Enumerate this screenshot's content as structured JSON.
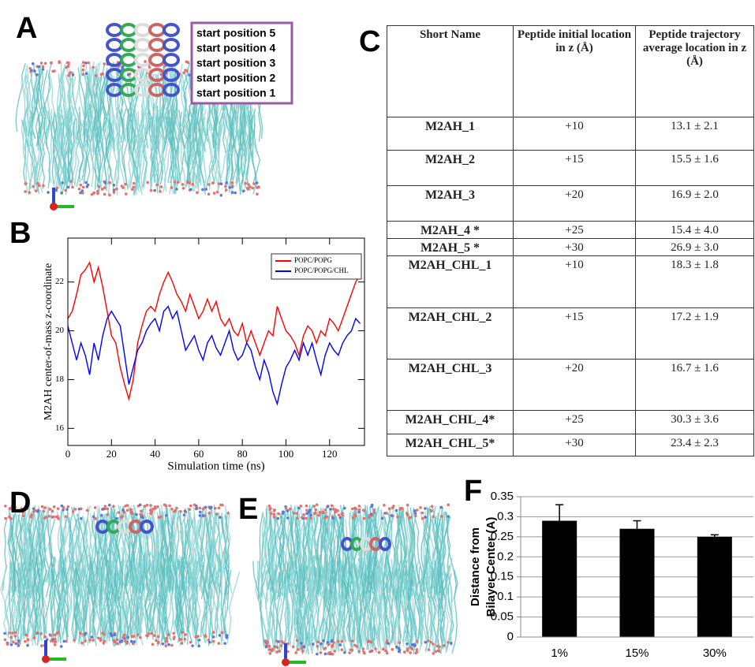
{
  "panel_labels": [
    "A",
    "B",
    "C",
    "D",
    "E",
    "F"
  ],
  "panel_a": {
    "start_positions": [
      "start position 5",
      "start position 4",
      "start position 3",
      "start position 2",
      "start position 1"
    ]
  },
  "table": {
    "header": [
      "Short Name",
      "Peptide initial location in z (Å)",
      "Peptide trajectory average location in z (Å)"
    ],
    "rows": [
      [
        "M2AH_1",
        "+10",
        "13.1 ± 2.1"
      ],
      [
        "M2AH_2",
        "+15",
        "15.5 ± 1.6"
      ],
      [
        "M2AH_3",
        "+20",
        "16.9 ± 2.0"
      ],
      [
        "M2AH_4 *",
        "+25",
        "15.4 ± 4.0"
      ],
      [
        "M2AH_5 *",
        "+30",
        "26.9 ± 3.0"
      ],
      [
        "M2AH_CHL_1",
        "+10",
        "18.3 ± 1.8"
      ],
      [
        "M2AH_CHL_2",
        "+15",
        "17.2 ± 1.9"
      ],
      [
        "M2AH_CHL_3",
        "+20",
        "16.7 ± 1.6"
      ],
      [
        "M2AH_CHL_4*",
        "+25",
        "30.3 ± 3.6"
      ],
      [
        "M2AH_CHL_5*",
        "+30",
        "23.4 ± 2.3"
      ]
    ]
  },
  "chart_data": [
    {
      "type": "line",
      "xlabel": "Simulation time (ns)",
      "ylabel": "M2AH center-of-mass z-coordinate",
      "x": [
        0,
        2,
        4,
        6,
        8,
        10,
        12,
        14,
        16,
        18,
        20,
        22,
        24,
        26,
        28,
        30,
        32,
        34,
        36,
        38,
        40,
        42,
        44,
        46,
        48,
        50,
        52,
        54,
        56,
        58,
        60,
        62,
        64,
        66,
        68,
        70,
        72,
        74,
        76,
        78,
        80,
        82,
        84,
        86,
        88,
        90,
        92,
        94,
        96,
        98,
        100,
        102,
        104,
        106,
        108,
        110,
        112,
        114,
        116,
        118,
        120,
        122,
        124,
        126,
        128,
        130,
        132,
        134
      ],
      "series": [
        {
          "name": "POPC/POPG",
          "color": "#ff0000",
          "values": [
            20.5,
            20.8,
            21.5,
            22.3,
            22.5,
            22.8,
            22.0,
            22.6,
            21.8,
            20.8,
            19.8,
            19.5,
            18.5,
            17.8,
            17.2,
            18.0,
            19.5,
            20.2,
            20.8,
            21.0,
            20.8,
            21.5,
            22.0,
            22.4,
            22.0,
            21.5,
            21.2,
            20.8,
            21.5,
            21.0,
            20.5,
            20.8,
            21.3,
            20.8,
            21.2,
            20.5,
            20.2,
            20.5,
            20.0,
            19.8,
            20.3,
            19.5,
            20.0,
            19.5,
            19.0,
            19.5,
            20.0,
            19.8,
            21.0,
            20.5,
            20.0,
            19.8,
            19.5,
            19.0,
            19.8,
            20.2,
            20.0,
            19.5,
            20.0,
            19.8,
            20.5,
            20.3,
            20.0,
            20.5,
            21.0,
            21.5,
            22.0,
            22.3
          ]
        },
        {
          "name": "POPC/POPG/CHL",
          "color": "#0000ff",
          "values": [
            20.2,
            19.5,
            18.8,
            19.5,
            19.0,
            18.2,
            19.5,
            18.8,
            19.8,
            20.5,
            20.8,
            20.5,
            20.2,
            19.0,
            17.8,
            18.5,
            19.2,
            19.5,
            20.0,
            20.3,
            20.5,
            20.0,
            20.8,
            21.0,
            20.5,
            20.8,
            20.0,
            19.2,
            19.5,
            19.8,
            19.2,
            18.8,
            19.5,
            19.8,
            19.3,
            19.0,
            19.5,
            20.0,
            19.2,
            18.8,
            19.0,
            19.5,
            19.2,
            18.5,
            18.0,
            18.8,
            18.3,
            17.5,
            17.0,
            17.8,
            18.5,
            18.8,
            19.2,
            18.8,
            19.5,
            19.0,
            19.5,
            18.8,
            18.2,
            19.0,
            19.5,
            19.2,
            19.0,
            19.5,
            19.8,
            20.0,
            20.5,
            20.3
          ]
        }
      ],
      "xlim": [
        0,
        136
      ],
      "ylim": [
        15.3,
        23.8
      ],
      "xticks": [
        0,
        20,
        40,
        60,
        80,
        100,
        120
      ],
      "yticks": [
        16,
        18,
        20,
        22
      ],
      "grid": false,
      "legend": "upper right"
    },
    {
      "type": "bar",
      "ylabel": [
        "Distance from",
        "Bilayer Center (A)"
      ],
      "categories": [
        "1%",
        "15%",
        "30%"
      ],
      "series": [
        {
          "color": "#000000",
          "values": [
            0.29,
            0.27,
            0.25
          ],
          "errors": [
            0.04,
            0.02,
            0.005
          ]
        }
      ],
      "ylim": [
        0,
        0.35
      ],
      "yticks": [
        0,
        0.05,
        0.1,
        0.15,
        0.2,
        0.25,
        0.3,
        0.35
      ],
      "grid": true
    }
  ]
}
